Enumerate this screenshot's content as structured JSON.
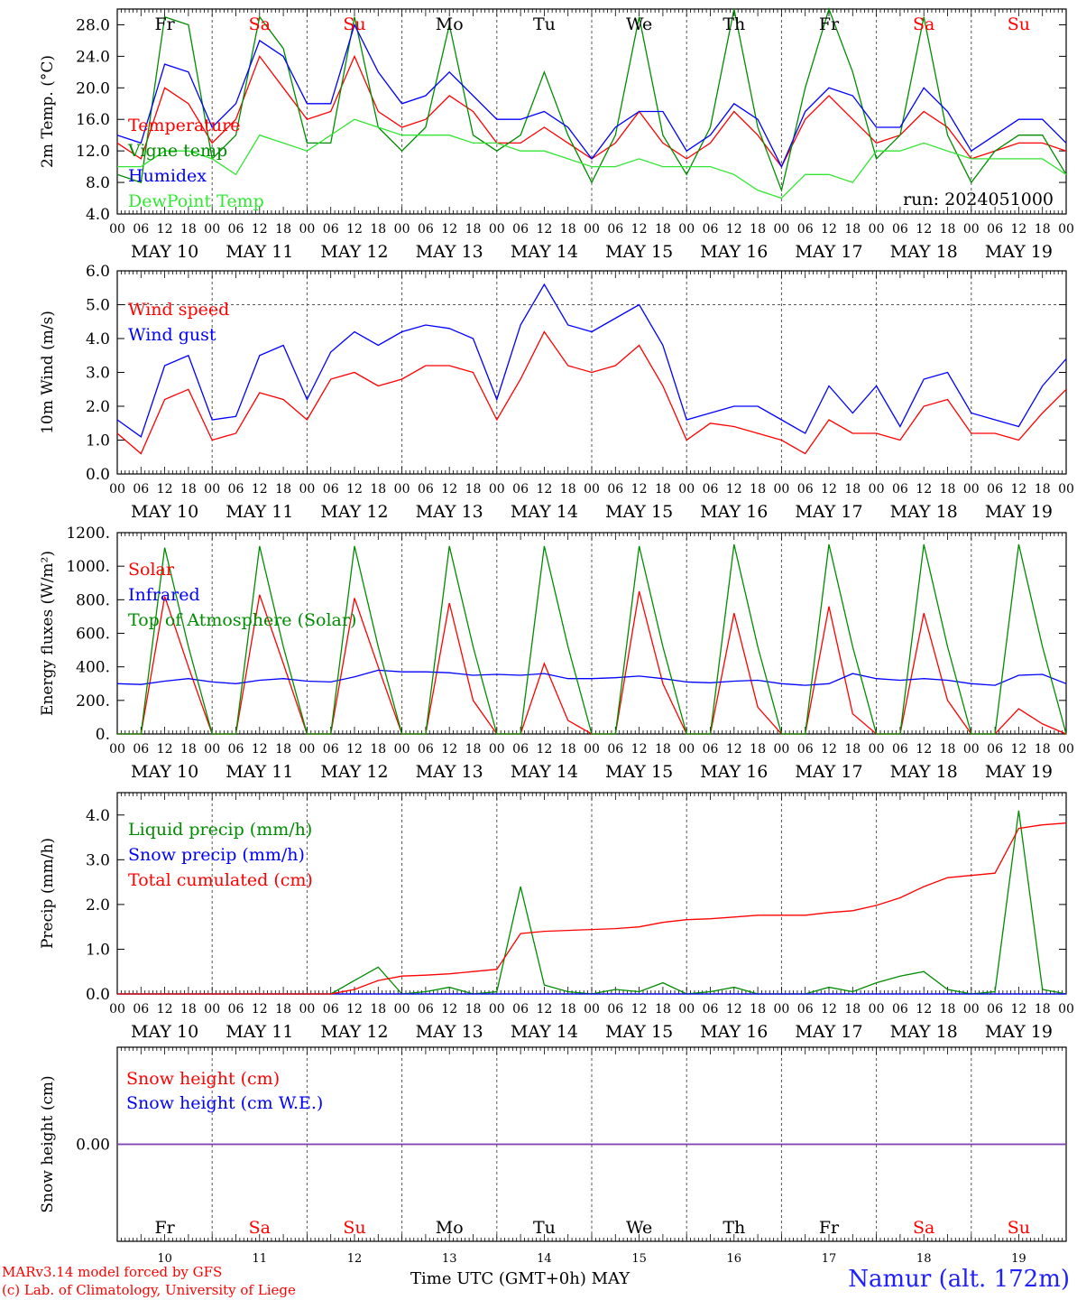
{
  "colors": {
    "red": "#ff0000",
    "green": "#008c00",
    "blue": "#0000ff",
    "lightgreen": "#33e633",
    "purple": "#7a3fb0",
    "daySat": "#ff0000",
    "dayDefault": "#000000"
  },
  "days": [
    "Fr",
    "Sa",
    "Su",
    "Mo",
    "Tu",
    "We",
    "Th",
    "Fr",
    "Sa",
    "Su"
  ],
  "weekend_flags": [
    false,
    true,
    true,
    false,
    false,
    false,
    false,
    false,
    true,
    true
  ],
  "date_labels": [
    "MAY 10",
    "MAY 11",
    "MAY 12",
    "MAY 13",
    "MAY 14",
    "MAY 15",
    "MAY 16",
    "MAY 17",
    "MAY 18",
    "MAY 19"
  ],
  "hour_labels": [
    "00",
    "06",
    "12",
    "18"
  ],
  "final_hour": "00",
  "day_numbers": [
    "10",
    "11",
    "12",
    "13",
    "14",
    "15",
    "16",
    "17",
    "18",
    "19"
  ],
  "footer": {
    "model": "MARv3.14 model forced by GFS",
    "lab": "(c) Lab. of Climatology, University of Liege",
    "xlabel": "Time UTC (GMT+0h) MAY",
    "location": "Namur (alt. 172m)"
  },
  "chart_data": [
    {
      "type": "line",
      "panel": "temperature",
      "ylabel": "2m Temp. (°C)",
      "ylim": [
        4,
        30
      ],
      "yticks": [
        "4.0",
        "8.0",
        "12.0",
        "16.0",
        "20.0",
        "24.0",
        "28.0"
      ],
      "run_label": "run: 2024051000",
      "x_hours": [
        0,
        6,
        12,
        18,
        24,
        30,
        36,
        42,
        48,
        54,
        60,
        66,
        72,
        78,
        84,
        90,
        96,
        102,
        108,
        114,
        120,
        126,
        132,
        138,
        144,
        150,
        156,
        162,
        168,
        174,
        180,
        186,
        192,
        198,
        204,
        210,
        216,
        222,
        228,
        234,
        240
      ],
      "series": [
        {
          "name": "Temperature",
          "color": "#ff0000",
          "values": [
            13,
            11,
            20,
            18,
            13,
            16,
            24,
            20,
            16,
            17,
            24,
            17,
            15,
            16,
            19,
            17,
            13,
            13,
            15,
            13,
            11,
            13,
            17,
            13,
            11,
            13,
            17,
            14,
            10,
            16,
            19,
            16,
            13,
            14,
            17,
            15,
            11,
            12,
            13,
            13,
            12
          ]
        },
        {
          "name": "Vigne temp",
          "color": "#008c00",
          "values": [
            9,
            8,
            29,
            28,
            11,
            14,
            29,
            25,
            13,
            13,
            29,
            15,
            12,
            15,
            28,
            14,
            12,
            14,
            22,
            14,
            8,
            14,
            29,
            14,
            9,
            15,
            30,
            15,
            7,
            20,
            30,
            22,
            11,
            14,
            29,
            14,
            8,
            12,
            14,
            14,
            9
          ]
        },
        {
          "name": "Humidex",
          "color": "#0000ff",
          "values": [
            14,
            13,
            23,
            22,
            15,
            18,
            26,
            24,
            18,
            18,
            28,
            22,
            18,
            19,
            22,
            19,
            16,
            16,
            17,
            15,
            11,
            15,
            17,
            17,
            12,
            14,
            18,
            16,
            10,
            17,
            20,
            19,
            15,
            15,
            20,
            17,
            12,
            14,
            16,
            16,
            13
          ]
        },
        {
          "name": "DewPoint Temp",
          "color": "#33e633",
          "values": [
            10,
            10,
            12,
            12,
            11,
            9,
            14,
            13,
            12,
            14,
            16,
            15,
            14,
            14,
            14,
            13,
            13,
            12,
            12,
            11,
            10,
            10,
            11,
            10,
            10,
            10,
            9,
            7,
            6,
            9,
            9,
            8,
            12,
            12,
            13,
            12,
            11,
            11,
            11,
            11,
            9
          ]
        }
      ]
    },
    {
      "type": "line",
      "panel": "wind",
      "ylabel": "10m Wind (m/s)",
      "ylim": [
        0,
        6
      ],
      "yticks": [
        "0.0",
        "1.0",
        "2.0",
        "3.0",
        "4.0",
        "5.0",
        "6.0"
      ],
      "reference_line": 5.0,
      "x_hours": [
        0,
        6,
        12,
        18,
        24,
        30,
        36,
        42,
        48,
        54,
        60,
        66,
        72,
        78,
        84,
        90,
        96,
        102,
        108,
        114,
        120,
        126,
        132,
        138,
        144,
        150,
        156,
        162,
        168,
        174,
        180,
        186,
        192,
        198,
        204,
        210,
        216,
        222,
        228,
        234,
        240
      ],
      "series": [
        {
          "name": "Wind speed",
          "color": "#ff0000",
          "values": [
            1.2,
            0.6,
            2.2,
            2.5,
            1.0,
            1.2,
            2.4,
            2.2,
            1.6,
            2.8,
            3.0,
            2.6,
            2.8,
            3.2,
            3.2,
            3.0,
            1.6,
            2.8,
            4.2,
            3.2,
            3.0,
            3.2,
            3.8,
            2.6,
            1.0,
            1.5,
            1.4,
            1.2,
            1.0,
            0.6,
            1.6,
            1.2,
            1.2,
            1.0,
            2.0,
            2.2,
            1.2,
            1.2,
            1.0,
            1.8,
            2.5
          ]
        },
        {
          "name": "Wind gust",
          "color": "#0000ff",
          "values": [
            1.6,
            1.1,
            3.2,
            3.5,
            1.6,
            1.7,
            3.5,
            3.8,
            2.2,
            3.6,
            4.2,
            3.8,
            4.2,
            4.4,
            4.3,
            4.0,
            2.2,
            4.4,
            5.6,
            4.4,
            4.2,
            4.6,
            5.0,
            3.8,
            1.6,
            1.8,
            2.0,
            2.0,
            1.6,
            1.2,
            2.6,
            1.8,
            2.6,
            1.4,
            2.8,
            3.0,
            1.8,
            1.6,
            1.4,
            2.6,
            3.4
          ]
        }
      ]
    },
    {
      "type": "line",
      "panel": "energy",
      "ylabel": "Energy fluxes (W/m²)",
      "ylim": [
        0,
        1200
      ],
      "yticks": [
        "0.",
        "200.",
        "400.",
        "600.",
        "800.",
        "1000.",
        "1200."
      ],
      "x_hours": [
        0,
        6,
        12,
        18,
        24,
        30,
        36,
        42,
        48,
        54,
        60,
        66,
        72,
        78,
        84,
        90,
        96,
        102,
        108,
        114,
        120,
        126,
        132,
        138,
        144,
        150,
        156,
        162,
        168,
        174,
        180,
        186,
        192,
        198,
        204,
        210,
        216,
        222,
        228,
        234,
        240
      ],
      "series": [
        {
          "name": "Solar",
          "color": "#ff0000",
          "values": [
            0,
            0,
            820,
            400,
            0,
            0,
            830,
            420,
            0,
            0,
            810,
            400,
            0,
            0,
            780,
            200,
            0,
            0,
            420,
            80,
            0,
            0,
            850,
            300,
            0,
            0,
            720,
            160,
            0,
            0,
            760,
            120,
            0,
            0,
            720,
            200,
            0,
            0,
            150,
            60,
            0
          ]
        },
        {
          "name": "Infrared",
          "color": "#0000ff",
          "values": [
            300,
            295,
            315,
            330,
            310,
            300,
            320,
            330,
            315,
            310,
            340,
            380,
            370,
            370,
            365,
            350,
            355,
            350,
            360,
            330,
            330,
            335,
            345,
            330,
            310,
            305,
            315,
            320,
            300,
            290,
            300,
            360,
            330,
            320,
            330,
            320,
            300,
            290,
            350,
            355,
            300
          ]
        },
        {
          "name": "Top of Atmosphere (Solar)",
          "color": "#008c00",
          "values": [
            0,
            0,
            1110,
            520,
            0,
            0,
            1120,
            520,
            0,
            0,
            1120,
            520,
            0,
            0,
            1120,
            520,
            0,
            0,
            1120,
            520,
            0,
            0,
            1120,
            520,
            0,
            0,
            1130,
            520,
            0,
            0,
            1130,
            520,
            0,
            0,
            1130,
            520,
            0,
            0,
            1130,
            520,
            0
          ]
        }
      ]
    },
    {
      "type": "line",
      "panel": "precip",
      "ylabel": "Precip (mm/h)",
      "ylim": [
        0,
        4.5
      ],
      "yticks": [
        "0.0",
        "1.0",
        "2.0",
        "3.0",
        "4.0"
      ],
      "x_hours": [
        0,
        6,
        12,
        18,
        24,
        30,
        36,
        42,
        48,
        54,
        60,
        66,
        72,
        78,
        84,
        90,
        96,
        102,
        108,
        114,
        120,
        126,
        132,
        138,
        144,
        150,
        156,
        162,
        168,
        174,
        180,
        186,
        192,
        198,
        204,
        210,
        216,
        222,
        228,
        234,
        240
      ],
      "series": [
        {
          "name": "Liquid precip (mm/h)",
          "color": "#008c00",
          "values": [
            0,
            0,
            0,
            0,
            0,
            0,
            0,
            0,
            0,
            0,
            0.3,
            0.6,
            0,
            0.05,
            0.15,
            0,
            0.05,
            2.4,
            0.2,
            0.05,
            0,
            0.1,
            0.05,
            0.25,
            0,
            0.05,
            0.15,
            0,
            0,
            0,
            0.15,
            0.05,
            0.25,
            0.4,
            0.5,
            0.1,
            0,
            0.05,
            4.1,
            0.1,
            0
          ]
        },
        {
          "name": "Snow precip (mm/h)",
          "color": "#0000ff",
          "values": [
            0,
            0,
            0,
            0,
            0,
            0,
            0,
            0,
            0,
            0,
            0,
            0,
            0,
            0,
            0,
            0,
            0,
            0,
            0,
            0,
            0,
            0,
            0,
            0,
            0,
            0,
            0,
            0,
            0,
            0,
            0,
            0,
            0,
            0,
            0,
            0,
            0,
            0,
            0,
            0,
            0
          ]
        },
        {
          "name": "Total cumulated (cm)",
          "color": "#ff0000",
          "values": [
            0,
            0,
            0,
            0,
            0,
            0,
            0,
            0,
            0,
            0,
            0.1,
            0.3,
            0.4,
            0.42,
            0.45,
            0.5,
            0.55,
            1.35,
            1.4,
            1.42,
            1.44,
            1.46,
            1.5,
            1.6,
            1.66,
            1.68,
            1.72,
            1.76,
            1.76,
            1.76,
            1.82,
            1.86,
            1.98,
            2.15,
            2.4,
            2.6,
            2.65,
            2.7,
            3.7,
            3.78,
            3.82
          ]
        }
      ]
    },
    {
      "type": "line",
      "panel": "snow",
      "ylabel": "Snow height (cm)",
      "ylim": [
        -1,
        1
      ],
      "yticks": [
        "0.00"
      ],
      "x_hours": [
        0,
        240
      ],
      "series": [
        {
          "name": "Snow height (cm)",
          "color": "#ff0000",
          "values": [
            0,
            0
          ]
        },
        {
          "name": "Snow height (cm W.E.)",
          "color": "#0000ff",
          "values": [
            0,
            0
          ]
        }
      ]
    }
  ]
}
